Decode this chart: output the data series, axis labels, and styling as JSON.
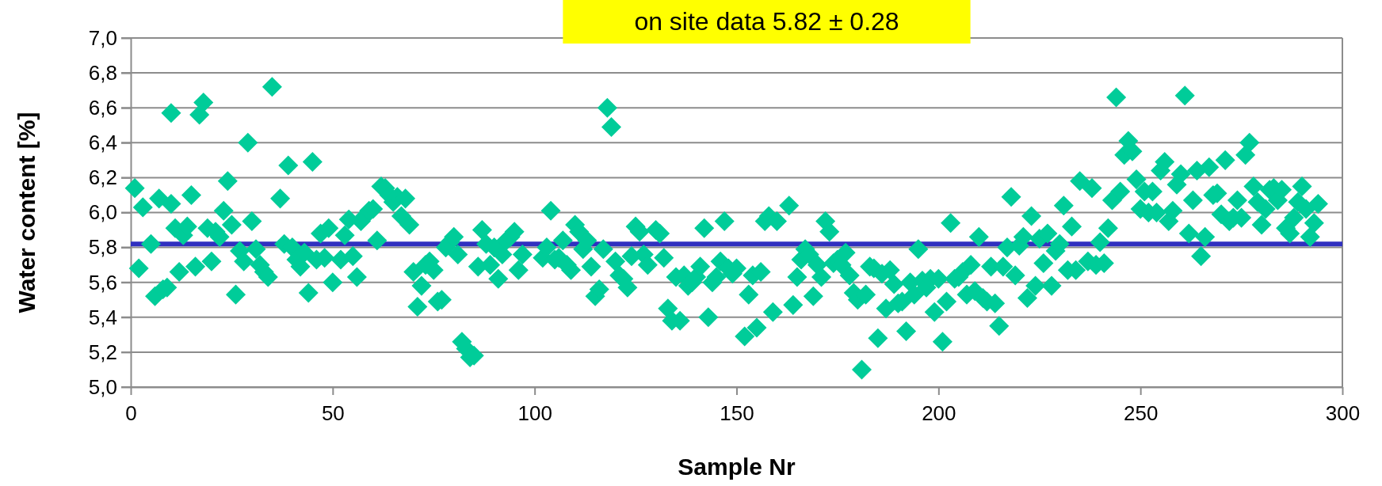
{
  "chart_data": {
    "type": "scatter",
    "title": "on site data 5.82 ± 0.28",
    "xlabel": "Sample Nr",
    "ylabel": "Water content [%]",
    "xlim": [
      0,
      300
    ],
    "xticks": [
      0,
      50,
      100,
      150,
      200,
      250,
      300
    ],
    "ylim": [
      5,
      7
    ],
    "yticks": [
      {
        "value": 5,
        "label": "5,0"
      },
      {
        "value": 5.2,
        "label": "5,2"
      },
      {
        "value": 5.4,
        "label": "5,4"
      },
      {
        "value": 5.6,
        "label": "5,6"
      },
      {
        "value": 5.8,
        "label": "5,8"
      },
      {
        "value": 6,
        "label": "6,0"
      },
      {
        "value": 6.2,
        "label": "6,2"
      },
      {
        "value": 6.4,
        "label": "6,4"
      },
      {
        "value": 6.6,
        "label": "6,6"
      },
      {
        "value": 6.8,
        "label": "6,8"
      },
      {
        "value": 7,
        "label": "7,0"
      }
    ],
    "grid": "y",
    "marker": "diamond",
    "ref_lines": [
      {
        "axis": "y",
        "value": 5.82,
        "color": "#3030c0"
      }
    ],
    "series": [
      {
        "color": "#00cc99",
        "x": [
          1,
          2,
          3,
          5,
          6,
          7,
          8,
          9,
          10,
          10,
          11,
          12,
          13,
          14,
          15,
          16,
          17,
          18,
          19,
          20,
          21,
          22,
          23,
          24,
          25,
          26,
          27,
          28,
          29,
          30,
          31,
          32,
          33,
          34,
          35,
          37,
          38,
          39,
          40,
          41,
          42,
          43,
          44,
          45,
          46,
          47,
          48,
          49,
          50,
          52,
          53,
          54,
          55,
          56,
          57,
          58,
          59,
          60,
          61,
          62,
          63,
          64,
          65,
          66,
          67,
          68,
          69,
          70,
          71,
          72,
          73,
          74,
          75,
          76,
          77,
          78,
          79,
          80,
          81,
          82,
          83,
          84,
          85,
          86,
          87,
          88,
          89,
          90,
          91,
          92,
          93,
          94,
          95,
          96,
          97,
          102,
          103,
          104,
          105,
          106,
          107,
          108,
          109,
          110,
          111,
          112,
          113,
          114,
          115,
          116,
          117,
          118,
          119,
          120,
          121,
          122,
          123,
          124,
          125,
          126,
          127,
          128,
          130,
          131,
          132,
          133,
          134,
          135,
          136,
          137,
          138,
          139,
          140,
          141,
          142,
          143,
          144,
          145,
          146,
          147,
          148,
          149,
          150,
          152,
          153,
          154,
          155,
          156,
          157,
          158,
          159,
          160,
          163,
          164,
          165,
          166,
          167,
          168,
          169,
          170,
          171,
          172,
          173,
          174,
          175,
          176,
          177,
          178,
          179,
          180,
          181,
          182,
          183,
          184,
          185,
          186,
          187,
          188,
          189,
          190,
          191,
          192,
          193,
          194,
          195,
          196,
          197,
          198,
          199,
          200,
          201,
          202,
          203,
          204,
          205,
          206,
          207,
          208,
          209,
          210,
          211,
          212,
          213,
          214,
          215,
          216,
          217,
          218,
          219,
          220,
          221,
          222,
          223,
          224,
          225,
          226,
          227,
          228,
          229,
          230,
          231,
          232,
          233,
          234,
          235,
          237,
          238,
          239,
          240,
          241,
          242,
          243,
          244,
          245,
          246,
          247,
          248,
          249,
          250,
          251,
          252,
          253,
          254,
          255,
          256,
          257,
          258,
          259,
          260,
          261,
          262,
          263,
          264,
          265,
          266,
          267,
          268,
          269,
          270,
          271,
          272,
          273,
          274,
          275,
          276,
          277,
          278,
          279,
          280,
          281,
          282,
          283,
          284,
          285,
          286,
          287,
          288,
          289,
          290,
          291,
          292,
          293,
          294
        ],
        "values": [
          6.14,
          5.68,
          6.03,
          5.82,
          5.52,
          6.08,
          5.56,
          5.57,
          6.57,
          6.05,
          5.91,
          5.66,
          5.87,
          5.92,
          6.1,
          5.69,
          6.56,
          6.63,
          5.91,
          5.72,
          5.89,
          5.86,
          6.01,
          6.18,
          5.93,
          5.53,
          5.78,
          5.72,
          6.4,
          5.95,
          5.79,
          5.7,
          5.66,
          5.63,
          6.72,
          6.08,
          5.82,
          6.27,
          5.8,
          5.73,
          5.69,
          5.77,
          5.54,
          6.29,
          5.73,
          5.88,
          5.74,
          5.91,
          5.6,
          5.73,
          5.87,
          5.96,
          5.75,
          5.63,
          5.95,
          5.98,
          6.01,
          6.02,
          5.84,
          6.15,
          6.14,
          6.1,
          6.06,
          6.09,
          5.98,
          6.08,
          5.93,
          5.66,
          5.46,
          5.58,
          5.7,
          5.72,
          5.67,
          5.49,
          5.5,
          5.8,
          5.83,
          5.86,
          5.76,
          5.26,
          5.22,
          5.17,
          5.18,
          5.69,
          5.9,
          5.82,
          5.7,
          5.8,
          5.62,
          5.76,
          5.84,
          5.86,
          5.89,
          5.67,
          5.76,
          5.74,
          5.8,
          6.01,
          5.73,
          5.74,
          5.84,
          5.7,
          5.67,
          5.93,
          5.89,
          5.79,
          5.84,
          5.69,
          5.52,
          5.56,
          5.79,
          6.6,
          6.49,
          5.72,
          5.64,
          5.62,
          5.57,
          5.75,
          5.92,
          5.89,
          5.76,
          5.7,
          5.9,
          5.88,
          5.74,
          5.45,
          5.38,
          5.63,
          5.38,
          5.64,
          5.58,
          5.6,
          5.63,
          5.69,
          5.91,
          5.4,
          5.6,
          5.63,
          5.72,
          5.95,
          5.68,
          5.65,
          5.68,
          5.29,
          5.53,
          5.64,
          5.34,
          5.66,
          5.95,
          5.98,
          5.43,
          5.95,
          6.04,
          5.47,
          5.63,
          5.73,
          5.79,
          5.76,
          5.52,
          5.7,
          5.63,
          5.95,
          5.89,
          5.71,
          5.73,
          5.7,
          5.77,
          5.64,
          5.54,
          5.5,
          5.1,
          5.53,
          5.69,
          5.68,
          5.28,
          5.65,
          5.45,
          5.67,
          5.59,
          5.48,
          5.49,
          5.32,
          5.6,
          5.53,
          5.79,
          5.61,
          5.57,
          5.62,
          5.43,
          5.62,
          5.26,
          5.49,
          5.94,
          5.62,
          5.63,
          5.66,
          5.53,
          5.7,
          5.55,
          5.86,
          5.51,
          5.49,
          5.69,
          5.48,
          5.35,
          5.69,
          5.8,
          6.09,
          5.64,
          5.81,
          5.86,
          5.51,
          5.98,
          5.58,
          5.85,
          5.71,
          5.88,
          5.58,
          5.78,
          5.82,
          6.04,
          5.67,
          5.92,
          5.67,
          6.18,
          5.72,
          6.14,
          5.7,
          5.83,
          5.71,
          5.91,
          6.07,
          6.66,
          6.12,
          6.33,
          6.41,
          6.35,
          6.19,
          6.02,
          6.12,
          6,
          6.12,
          6,
          6.24,
          6.29,
          5.95,
          6.01,
          6.16,
          6.22,
          6.67,
          5.88,
          6.07,
          6.24,
          5.75,
          5.86,
          6.26,
          6.1,
          6.11,
          5.99,
          6.3,
          5.95,
          5.97,
          6.07,
          5.97,
          6.33,
          6.4,
          6.15,
          6.06,
          5.93,
          6.02,
          6.13,
          6.14,
          6.07,
          6.13,
          5.91,
          5.88,
          5.97,
          6.06,
          6.15,
          6.02,
          5.86,
          5.94,
          6.05
        ]
      }
    ]
  }
}
